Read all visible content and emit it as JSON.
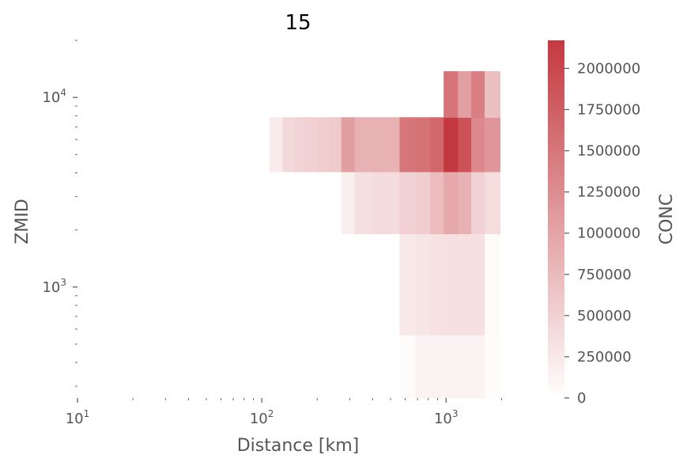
{
  "chart_data": {
    "type": "heatmap",
    "title": "15",
    "xlabel": "Distance [km]",
    "ylabel": "ZMID",
    "xscale": "log",
    "yscale": "log",
    "xlim": [
      10,
      2500
    ],
    "ylim": [
      260,
      20000
    ],
    "x_ticks": [
      {
        "value": 10,
        "base": "10",
        "exp": "1"
      },
      {
        "value": 100,
        "base": "10",
        "exp": "2"
      },
      {
        "value": 1000,
        "base": "10",
        "exp": "3"
      }
    ],
    "y_ticks": [
      {
        "value": 1000,
        "base": "10",
        "exp": "3"
      },
      {
        "value": 10000,
        "base": "10",
        "exp": "4"
      }
    ],
    "colorbar": {
      "label": "CONC",
      "min": 0,
      "max": 2170000,
      "ticks": [
        0,
        250000,
        500000,
        750000,
        1000000,
        1250000,
        1500000,
        1750000,
        2000000
      ],
      "tick_labels": [
        "0",
        "250000",
        "500000",
        "750000",
        "1000000",
        "1250000",
        "1500000",
        "1750000",
        "2000000"
      ],
      "color_low": "#ffffff",
      "color_high": "#c4393f"
    },
    "x_edges": [
      110,
      130,
      150,
      170,
      200,
      230,
      270,
      320,
      400,
      560,
      680,
      820,
      970,
      1160,
      1370,
      1620,
      1960
    ],
    "rows": [
      {
        "z_range": [
          260,
          560
        ],
        "values": [
          null,
          null,
          null,
          null,
          null,
          null,
          null,
          null,
          null,
          40000,
          130000,
          130000,
          130000,
          130000,
          130000,
          40000
        ]
      },
      {
        "z_range": [
          560,
          1910
        ],
        "values": [
          null,
          null,
          null,
          null,
          null,
          null,
          null,
          null,
          null,
          250000,
          280000,
          320000,
          340000,
          340000,
          340000,
          60000
        ]
      },
      {
        "z_range": [
          1910,
          4060
        ],
        "values": [
          null,
          null,
          null,
          null,
          null,
          null,
          180000,
          350000,
          400000,
          500000,
          540000,
          750000,
          950000,
          850000,
          500000,
          380000
        ]
      },
      {
        "z_range": [
          4060,
          7860
        ],
        "values": [
          230000,
          430000,
          480000,
          500000,
          550000,
          580000,
          1050000,
          850000,
          850000,
          1500000,
          1550000,
          1650000,
          2170000,
          1900000,
          1300000,
          1150000
        ]
      },
      {
        "z_range": [
          7860,
          13750
        ],
        "values": [
          null,
          null,
          null,
          null,
          null,
          null,
          null,
          null,
          null,
          null,
          null,
          null,
          1520000,
          1050000,
          1400000,
          700000
        ]
      }
    ]
  }
}
